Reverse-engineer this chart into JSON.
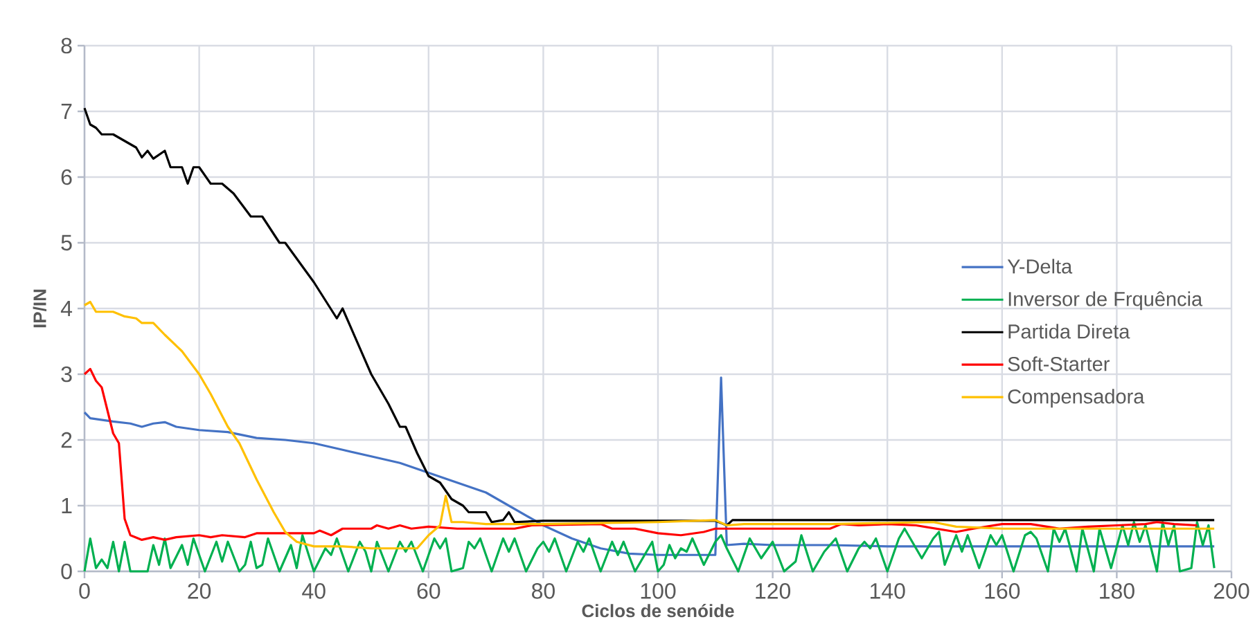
{
  "chart_data": {
    "type": "line",
    "xlabel": "Ciclos de senóide",
    "ylabel": "IP/IN",
    "xlim": [
      0,
      200
    ],
    "xticks": [
      0,
      20,
      40,
      60,
      80,
      100,
      120,
      140,
      160,
      180,
      200
    ],
    "ylim": [
      0,
      8
    ],
    "yticks": [
      0,
      1,
      2,
      3,
      4,
      5,
      6,
      7,
      8
    ],
    "grid": true,
    "legend": "right",
    "series": [
      {
        "name": "Y-Delta",
        "color": "#4472c4",
        "x": [
          0,
          1,
          5,
          8,
          10,
          12,
          14,
          16,
          20,
          25,
          30,
          35,
          40,
          45,
          50,
          55,
          60,
          65,
          70,
          75,
          80,
          85,
          90,
          95,
          100,
          105,
          110,
          111,
          112,
          115,
          120,
          130,
          140,
          160,
          180,
          197
        ],
        "values": [
          2.42,
          2.33,
          2.28,
          2.25,
          2.2,
          2.25,
          2.27,
          2.2,
          2.15,
          2.12,
          2.03,
          2.0,
          1.95,
          1.85,
          1.75,
          1.65,
          1.5,
          1.35,
          1.2,
          0.95,
          0.7,
          0.5,
          0.35,
          0.27,
          0.25,
          0.25,
          0.25,
          2.95,
          0.4,
          0.42,
          0.4,
          0.4,
          0.38,
          0.38,
          0.38,
          0.38
        ]
      },
      {
        "name": "Inversor de Frquência",
        "color": "#00b050",
        "x": [
          0,
          1,
          2,
          3,
          4,
          5,
          6,
          7,
          8,
          11,
          12,
          13,
          14,
          15,
          17,
          18,
          19,
          21,
          23,
          24,
          25,
          27,
          28,
          29,
          30,
          31,
          32,
          34,
          36,
          37,
          38,
          40,
          42,
          43,
          44,
          46,
          48,
          49,
          50,
          51,
          53,
          55,
          56,
          57,
          59,
          61,
          62,
          63,
          64,
          66,
          67,
          68,
          69,
          71,
          73,
          74,
          75,
          77,
          79,
          80,
          81,
          82,
          84,
          86,
          87,
          88,
          90,
          92,
          93,
          94,
          96,
          98,
          99,
          100,
          101,
          102,
          103,
          104,
          105,
          106,
          108,
          110,
          111,
          112,
          114,
          116,
          118,
          120,
          122,
          124,
          125,
          127,
          129,
          131,
          133,
          135,
          136,
          137,
          138,
          140,
          142,
          143,
          144,
          146,
          148,
          149,
          150,
          152,
          153,
          154,
          156,
          158,
          159,
          160,
          162,
          164,
          165,
          166,
          168,
          169,
          170,
          171,
          173,
          174,
          176,
          177,
          179,
          181,
          182,
          183,
          184,
          185,
          187,
          188,
          189,
          190,
          191,
          193,
          194,
          195,
          196,
          197
        ],
        "values": [
          0.0,
          0.5,
          0.05,
          0.18,
          0.05,
          0.45,
          0.0,
          0.45,
          0.0,
          0.0,
          0.4,
          0.1,
          0.5,
          0.05,
          0.4,
          0.1,
          0.5,
          0.0,
          0.45,
          0.15,
          0.45,
          0.0,
          0.1,
          0.45,
          0.05,
          0.1,
          0.5,
          0.0,
          0.4,
          0.05,
          0.55,
          0.0,
          0.35,
          0.25,
          0.5,
          0.0,
          0.45,
          0.3,
          0.0,
          0.45,
          0.0,
          0.45,
          0.3,
          0.45,
          0.0,
          0.5,
          0.35,
          0.5,
          0.0,
          0.05,
          0.45,
          0.35,
          0.5,
          0.0,
          0.5,
          0.3,
          0.5,
          0.0,
          0.35,
          0.45,
          0.3,
          0.5,
          0.0,
          0.45,
          0.3,
          0.5,
          0.0,
          0.45,
          0.25,
          0.45,
          0.0,
          0.3,
          0.45,
          0.0,
          0.1,
          0.4,
          0.2,
          0.35,
          0.3,
          0.5,
          0.1,
          0.45,
          0.55,
          0.35,
          0.0,
          0.5,
          0.2,
          0.45,
          0.0,
          0.15,
          0.55,
          0.0,
          0.3,
          0.5,
          0.0,
          0.35,
          0.45,
          0.35,
          0.5,
          0.0,
          0.5,
          0.65,
          0.5,
          0.2,
          0.5,
          0.6,
          0.1,
          0.55,
          0.3,
          0.55,
          0.05,
          0.55,
          0.4,
          0.55,
          0.0,
          0.55,
          0.6,
          0.5,
          0.0,
          0.65,
          0.45,
          0.65,
          0.0,
          0.65,
          0.0,
          0.65,
          0.05,
          0.7,
          0.4,
          0.75,
          0.45,
          0.7,
          0.0,
          0.75,
          0.4,
          0.7,
          0.0,
          0.05,
          0.75,
          0.4,
          0.7,
          0.05
        ]
      },
      {
        "name": "Partida Direta",
        "color": "#000000",
        "x": [
          0,
          1,
          2,
          3,
          5,
          7,
          9,
          10,
          11,
          12,
          14,
          15,
          17,
          18,
          19,
          20,
          22,
          24,
          26,
          29,
          31,
          34,
          35,
          40,
          44,
          45,
          47,
          50,
          53,
          55,
          56,
          58,
          60,
          62,
          64,
          66,
          67,
          70,
          71,
          73,
          74,
          75,
          80,
          110,
          112,
          113,
          197
        ],
        "values": [
          7.05,
          6.8,
          6.75,
          6.65,
          6.65,
          6.55,
          6.45,
          6.3,
          6.4,
          6.28,
          6.4,
          6.15,
          6.15,
          5.9,
          6.15,
          6.15,
          5.9,
          5.9,
          5.75,
          5.4,
          5.4,
          5.0,
          5.0,
          4.4,
          3.85,
          4.0,
          3.6,
          3.0,
          2.55,
          2.2,
          2.2,
          1.8,
          1.45,
          1.35,
          1.1,
          1.0,
          0.9,
          0.9,
          0.75,
          0.78,
          0.9,
          0.75,
          0.77,
          0.77,
          0.7,
          0.78,
          0.78
        ]
      },
      {
        "name": "Soft-Starter",
        "color": "#ff0000",
        "x": [
          0,
          1,
          2,
          3,
          5,
          6,
          7,
          8,
          10,
          12,
          14,
          16,
          20,
          22,
          24,
          28,
          30,
          40,
          41,
          43,
          45,
          50,
          51,
          53,
          55,
          57,
          60,
          65,
          75,
          78,
          90,
          92,
          96,
          100,
          104,
          108,
          110,
          120,
          130,
          132,
          135,
          140,
          145,
          152,
          155,
          160,
          165,
          170,
          175,
          180,
          185,
          187,
          190,
          194
        ],
        "values": [
          3.0,
          3.08,
          2.9,
          2.8,
          2.1,
          1.95,
          0.8,
          0.55,
          0.48,
          0.52,
          0.48,
          0.52,
          0.55,
          0.52,
          0.55,
          0.52,
          0.58,
          0.58,
          0.62,
          0.55,
          0.65,
          0.65,
          0.7,
          0.65,
          0.7,
          0.65,
          0.68,
          0.65,
          0.65,
          0.7,
          0.72,
          0.65,
          0.65,
          0.58,
          0.55,
          0.6,
          0.65,
          0.65,
          0.65,
          0.72,
          0.7,
          0.72,
          0.7,
          0.6,
          0.65,
          0.72,
          0.72,
          0.65,
          0.68,
          0.7,
          0.72,
          0.75,
          0.72,
          0.7
        ]
      },
      {
        "name": "Compensadora",
        "color": "#ffc000",
        "x": [
          0,
          1,
          2,
          5,
          7,
          9,
          10,
          12,
          14,
          17,
          20,
          22,
          25,
          27,
          30,
          33,
          35,
          37,
          40,
          45,
          50,
          55,
          58,
          60,
          62,
          63,
          64,
          66,
          70,
          80,
          100,
          110,
          112,
          115,
          130,
          148,
          152,
          160,
          197
        ],
        "values": [
          4.05,
          4.1,
          3.95,
          3.95,
          3.88,
          3.85,
          3.78,
          3.78,
          3.6,
          3.35,
          3.0,
          2.7,
          2.2,
          1.95,
          1.4,
          0.9,
          0.6,
          0.45,
          0.38,
          0.38,
          0.35,
          0.35,
          0.35,
          0.55,
          0.7,
          1.15,
          0.75,
          0.75,
          0.72,
          0.72,
          0.75,
          0.78,
          0.7,
          0.72,
          0.72,
          0.75,
          0.68,
          0.65,
          0.65
        ]
      }
    ]
  }
}
